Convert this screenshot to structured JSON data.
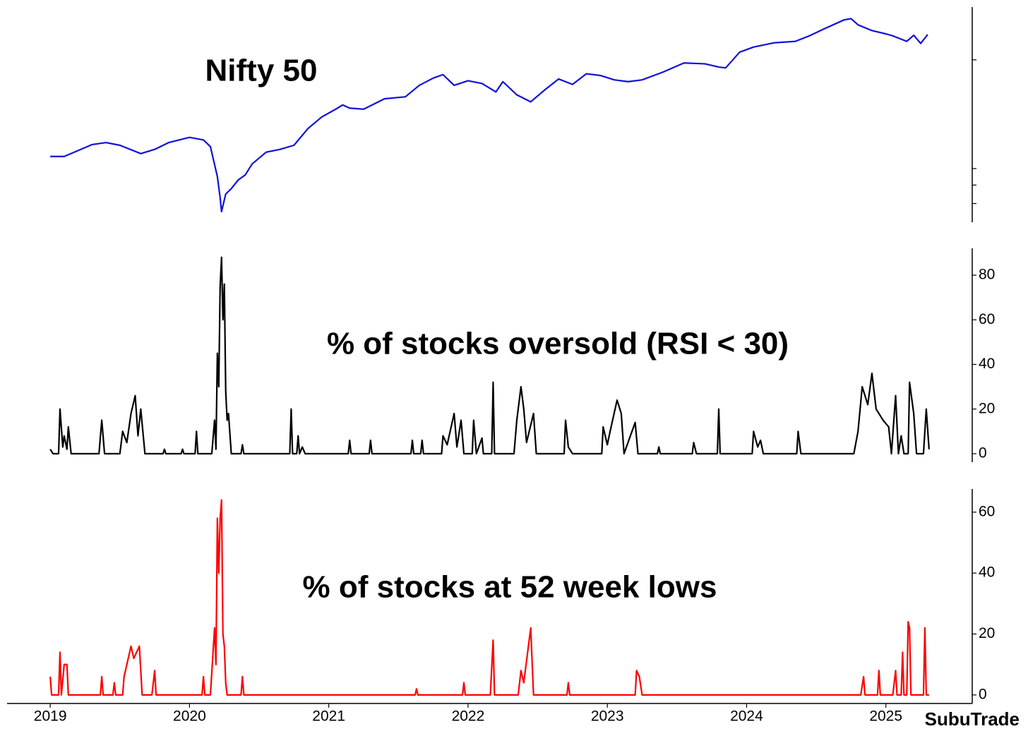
{
  "title_color": "#1a3be8",
  "watermark": "SubuTrade",
  "chart_data": [
    {
      "type": "line",
      "title": "Nifty 50",
      "color": "#1010dd",
      "log_y": true,
      "ylim": [
        7100,
        28000
      ],
      "yticks": [
        8000,
        9000,
        10000,
        20000
      ],
      "ytick_labels": false,
      "x": [
        2019.0,
        2019.1,
        2019.3,
        2019.4,
        2019.5,
        2019.65,
        2019.75,
        2019.85,
        2020.0,
        2020.1,
        2020.15,
        2020.2,
        2020.22,
        2020.23,
        2020.26,
        2020.3,
        2020.35,
        2020.4,
        2020.45,
        2020.55,
        2020.65,
        2020.75,
        2020.85,
        2020.95,
        2021.05,
        2021.1,
        2021.15,
        2021.25,
        2021.4,
        2021.55,
        2021.65,
        2021.75,
        2021.82,
        2021.9,
        2022.0,
        2022.1,
        2022.2,
        2022.25,
        2022.35,
        2022.45,
        2022.55,
        2022.65,
        2022.75,
        2022.85,
        2022.95,
        2023.05,
        2023.15,
        2023.25,
        2023.4,
        2023.55,
        2023.7,
        2023.8,
        2023.85,
        2023.95,
        2024.05,
        2024.2,
        2024.35,
        2024.45,
        2024.55,
        2024.7,
        2024.75,
        2024.8,
        2024.9,
        2025.0,
        2025.05,
        2025.15,
        2025.2,
        2025.25,
        2025.3
      ],
      "values": [
        10800,
        10800,
        11650,
        11800,
        11600,
        11000,
        11300,
        11800,
        12200,
        12000,
        11500,
        9500,
        8300,
        7600,
        8500,
        8800,
        9300,
        9600,
        10300,
        11100,
        11300,
        11600,
        12900,
        13900,
        14600,
        15000,
        14700,
        14600,
        15600,
        15800,
        17000,
        17800,
        18200,
        17000,
        17500,
        17200,
        16300,
        17400,
        16000,
        15300,
        16500,
        17700,
        17100,
        18300,
        18100,
        17600,
        17400,
        17600,
        18500,
        19600,
        19500,
        19100,
        19000,
        21000,
        21700,
        22300,
        22500,
        23300,
        24300,
        25800,
        26000,
        25000,
        24100,
        23600,
        23300,
        22500,
        23400,
        22200,
        23500
      ]
    },
    {
      "type": "line",
      "title": "% of stocks oversold (RSI < 30)",
      "color": "#000000",
      "ylim": [
        -3.8,
        92
      ],
      "yticks": [
        0,
        20,
        40,
        60,
        80
      ],
      "x": [
        2019.0,
        2019.02,
        2019.06,
        2019.07,
        2019.09,
        2019.1,
        2019.12,
        2019.13,
        2019.15,
        2019.35,
        2019.37,
        2019.39,
        2019.5,
        2019.52,
        2019.55,
        2019.58,
        2019.61,
        2019.63,
        2019.65,
        2019.68,
        2019.81,
        2019.82,
        2019.83,
        2019.94,
        2019.95,
        2019.96,
        2020.04,
        2020.05,
        2020.06,
        2020.16,
        2020.18,
        2020.19,
        2020.2,
        2020.21,
        2020.22,
        2020.23,
        2020.24,
        2020.25,
        2020.26,
        2020.27,
        2020.28,
        2020.3,
        2020.37,
        2020.38,
        2020.39,
        2020.72,
        2020.73,
        2020.74,
        2020.77,
        2020.78,
        2020.79,
        2020.81,
        2020.83,
        2021.14,
        2021.15,
        2021.16,
        2021.29,
        2021.3,
        2021.31,
        2021.59,
        2021.6,
        2021.61,
        2021.66,
        2021.67,
        2021.68,
        2021.81,
        2021.82,
        2021.85,
        2021.9,
        2021.92,
        2021.95,
        2021.97,
        2022.03,
        2022.04,
        2022.06,
        2022.1,
        2022.11,
        2022.17,
        2022.18,
        2022.19,
        2022.33,
        2022.35,
        2022.38,
        2022.4,
        2022.42,
        2022.47,
        2022.49,
        2022.69,
        2022.7,
        2022.72,
        2022.75,
        2022.96,
        2022.97,
        2023.0,
        2023.02,
        2023.07,
        2023.1,
        2023.12,
        2023.2,
        2023.22,
        2023.36,
        2023.37,
        2023.38,
        2023.61,
        2023.62,
        2023.64,
        2023.79,
        2023.8,
        2023.81,
        2024.04,
        2024.05,
        2024.08,
        2024.1,
        2024.12,
        2024.36,
        2024.37,
        2024.39,
        2024.77,
        2024.8,
        2024.83,
        2024.87,
        2024.9,
        2024.93,
        2024.98,
        2025.02,
        2025.04,
        2025.07,
        2025.09,
        2025.11,
        2025.13,
        2025.16,
        2025.17,
        2025.2,
        2025.22,
        2025.27,
        2025.29,
        2025.31
      ],
      "values": [
        2,
        0,
        0,
        20,
        3,
        8,
        2,
        12,
        0,
        0,
        15,
        0,
        0,
        10,
        5,
        18,
        26,
        8,
        20,
        0,
        0,
        2,
        0,
        0,
        2,
        0,
        0,
        10,
        0,
        0,
        15,
        2,
        45,
        30,
        75,
        88,
        60,
        76,
        28,
        15,
        18,
        0,
        0,
        4,
        0,
        0,
        20,
        0,
        0,
        8,
        0,
        3,
        0,
        0,
        6,
        0,
        0,
        6,
        0,
        0,
        6,
        0,
        0,
        6,
        0,
        0,
        8,
        4,
        18,
        3,
        15,
        0,
        0,
        15,
        0,
        7,
        0,
        0,
        32,
        0,
        0,
        15,
        30,
        20,
        5,
        18,
        0,
        0,
        15,
        3,
        0,
        0,
        12,
        4,
        10,
        24,
        18,
        0,
        14,
        0,
        0,
        3,
        0,
        0,
        5,
        0,
        0,
        20,
        0,
        0,
        10,
        3,
        6,
        0,
        0,
        10,
        0,
        0,
        10,
        30,
        22,
        36,
        20,
        15,
        12,
        0,
        26,
        0,
        8,
        0,
        0,
        32,
        18,
        0,
        0,
        20,
        2
      ]
    },
    {
      "type": "line",
      "title": "% of stocks at 52 week lows",
      "color": "#ff0000",
      "ylim": [
        -2.8,
        67.6
      ],
      "yticks": [
        0,
        20,
        40,
        60
      ],
      "xlim": [
        2018.69,
        2025.62
      ],
      "xticks": [
        2019,
        2020,
        2021,
        2022,
        2023,
        2024,
        2025
      ],
      "x": [
        2019.0,
        2019.01,
        2019.06,
        2019.07,
        2019.08,
        2019.1,
        2019.12,
        2019.13,
        2019.36,
        2019.37,
        2019.38,
        2019.45,
        2019.46,
        2019.47,
        2019.52,
        2019.53,
        2019.58,
        2019.6,
        2019.64,
        2019.66,
        2019.73,
        2019.75,
        2019.76,
        2020.09,
        2020.1,
        2020.11,
        2020.15,
        2020.18,
        2020.19,
        2020.2,
        2020.21,
        2020.22,
        2020.23,
        2020.24,
        2020.25,
        2020.26,
        2020.27,
        2020.37,
        2020.38,
        2020.39,
        2021.62,
        2021.63,
        2021.64,
        2021.96,
        2021.97,
        2021.98,
        2022.16,
        2022.18,
        2022.19,
        2022.36,
        2022.38,
        2022.4,
        2022.45,
        2022.47,
        2022.71,
        2022.72,
        2022.73,
        2023.2,
        2023.21,
        2023.23,
        2023.25,
        2024.82,
        2024.84,
        2024.85,
        2024.94,
        2024.95,
        2024.96,
        2025.05,
        2025.07,
        2025.08,
        2025.11,
        2025.12,
        2025.13,
        2025.15,
        2025.16,
        2025.17,
        2025.18,
        2025.27,
        2025.28,
        2025.29,
        2025.31
      ],
      "values": [
        6,
        0,
        0,
        14,
        0,
        10,
        10,
        0,
        0,
        6,
        0,
        0,
        4,
        0,
        0,
        6,
        16,
        12,
        16,
        0,
        0,
        8,
        0,
        0,
        6,
        0,
        0,
        22,
        10,
        58,
        40,
        58,
        64,
        20,
        16,
        4,
        0,
        0,
        6,
        0,
        0,
        2,
        0,
        0,
        4,
        0,
        0,
        18,
        0,
        0,
        8,
        4,
        22,
        0,
        0,
        4,
        0,
        0,
        8,
        6,
        0,
        0,
        6,
        0,
        0,
        8,
        0,
        0,
        8,
        0,
        0,
        14,
        0,
        0,
        24,
        22,
        0,
        0,
        22,
        0,
        0
      ]
    }
  ]
}
